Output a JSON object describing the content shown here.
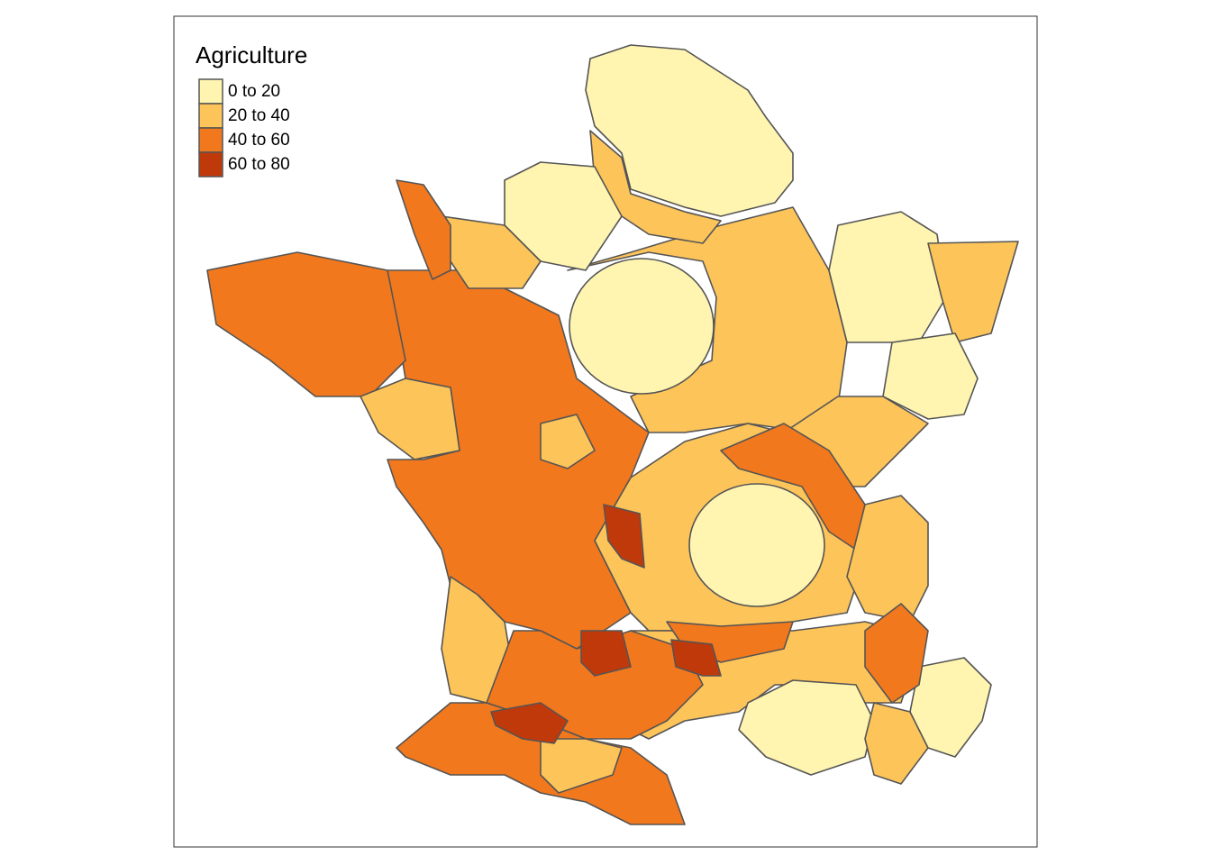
{
  "legend": {
    "title": "Agriculture",
    "items": [
      {
        "label": "0 to 20",
        "color": "#fff5b0"
      },
      {
        "label": "20 to 40",
        "color": "#fdc45a"
      },
      {
        "label": "40 to 60",
        "color": "#f2781d"
      },
      {
        "label": "60 to 80",
        "color": "#c0390b"
      }
    ]
  }
}
